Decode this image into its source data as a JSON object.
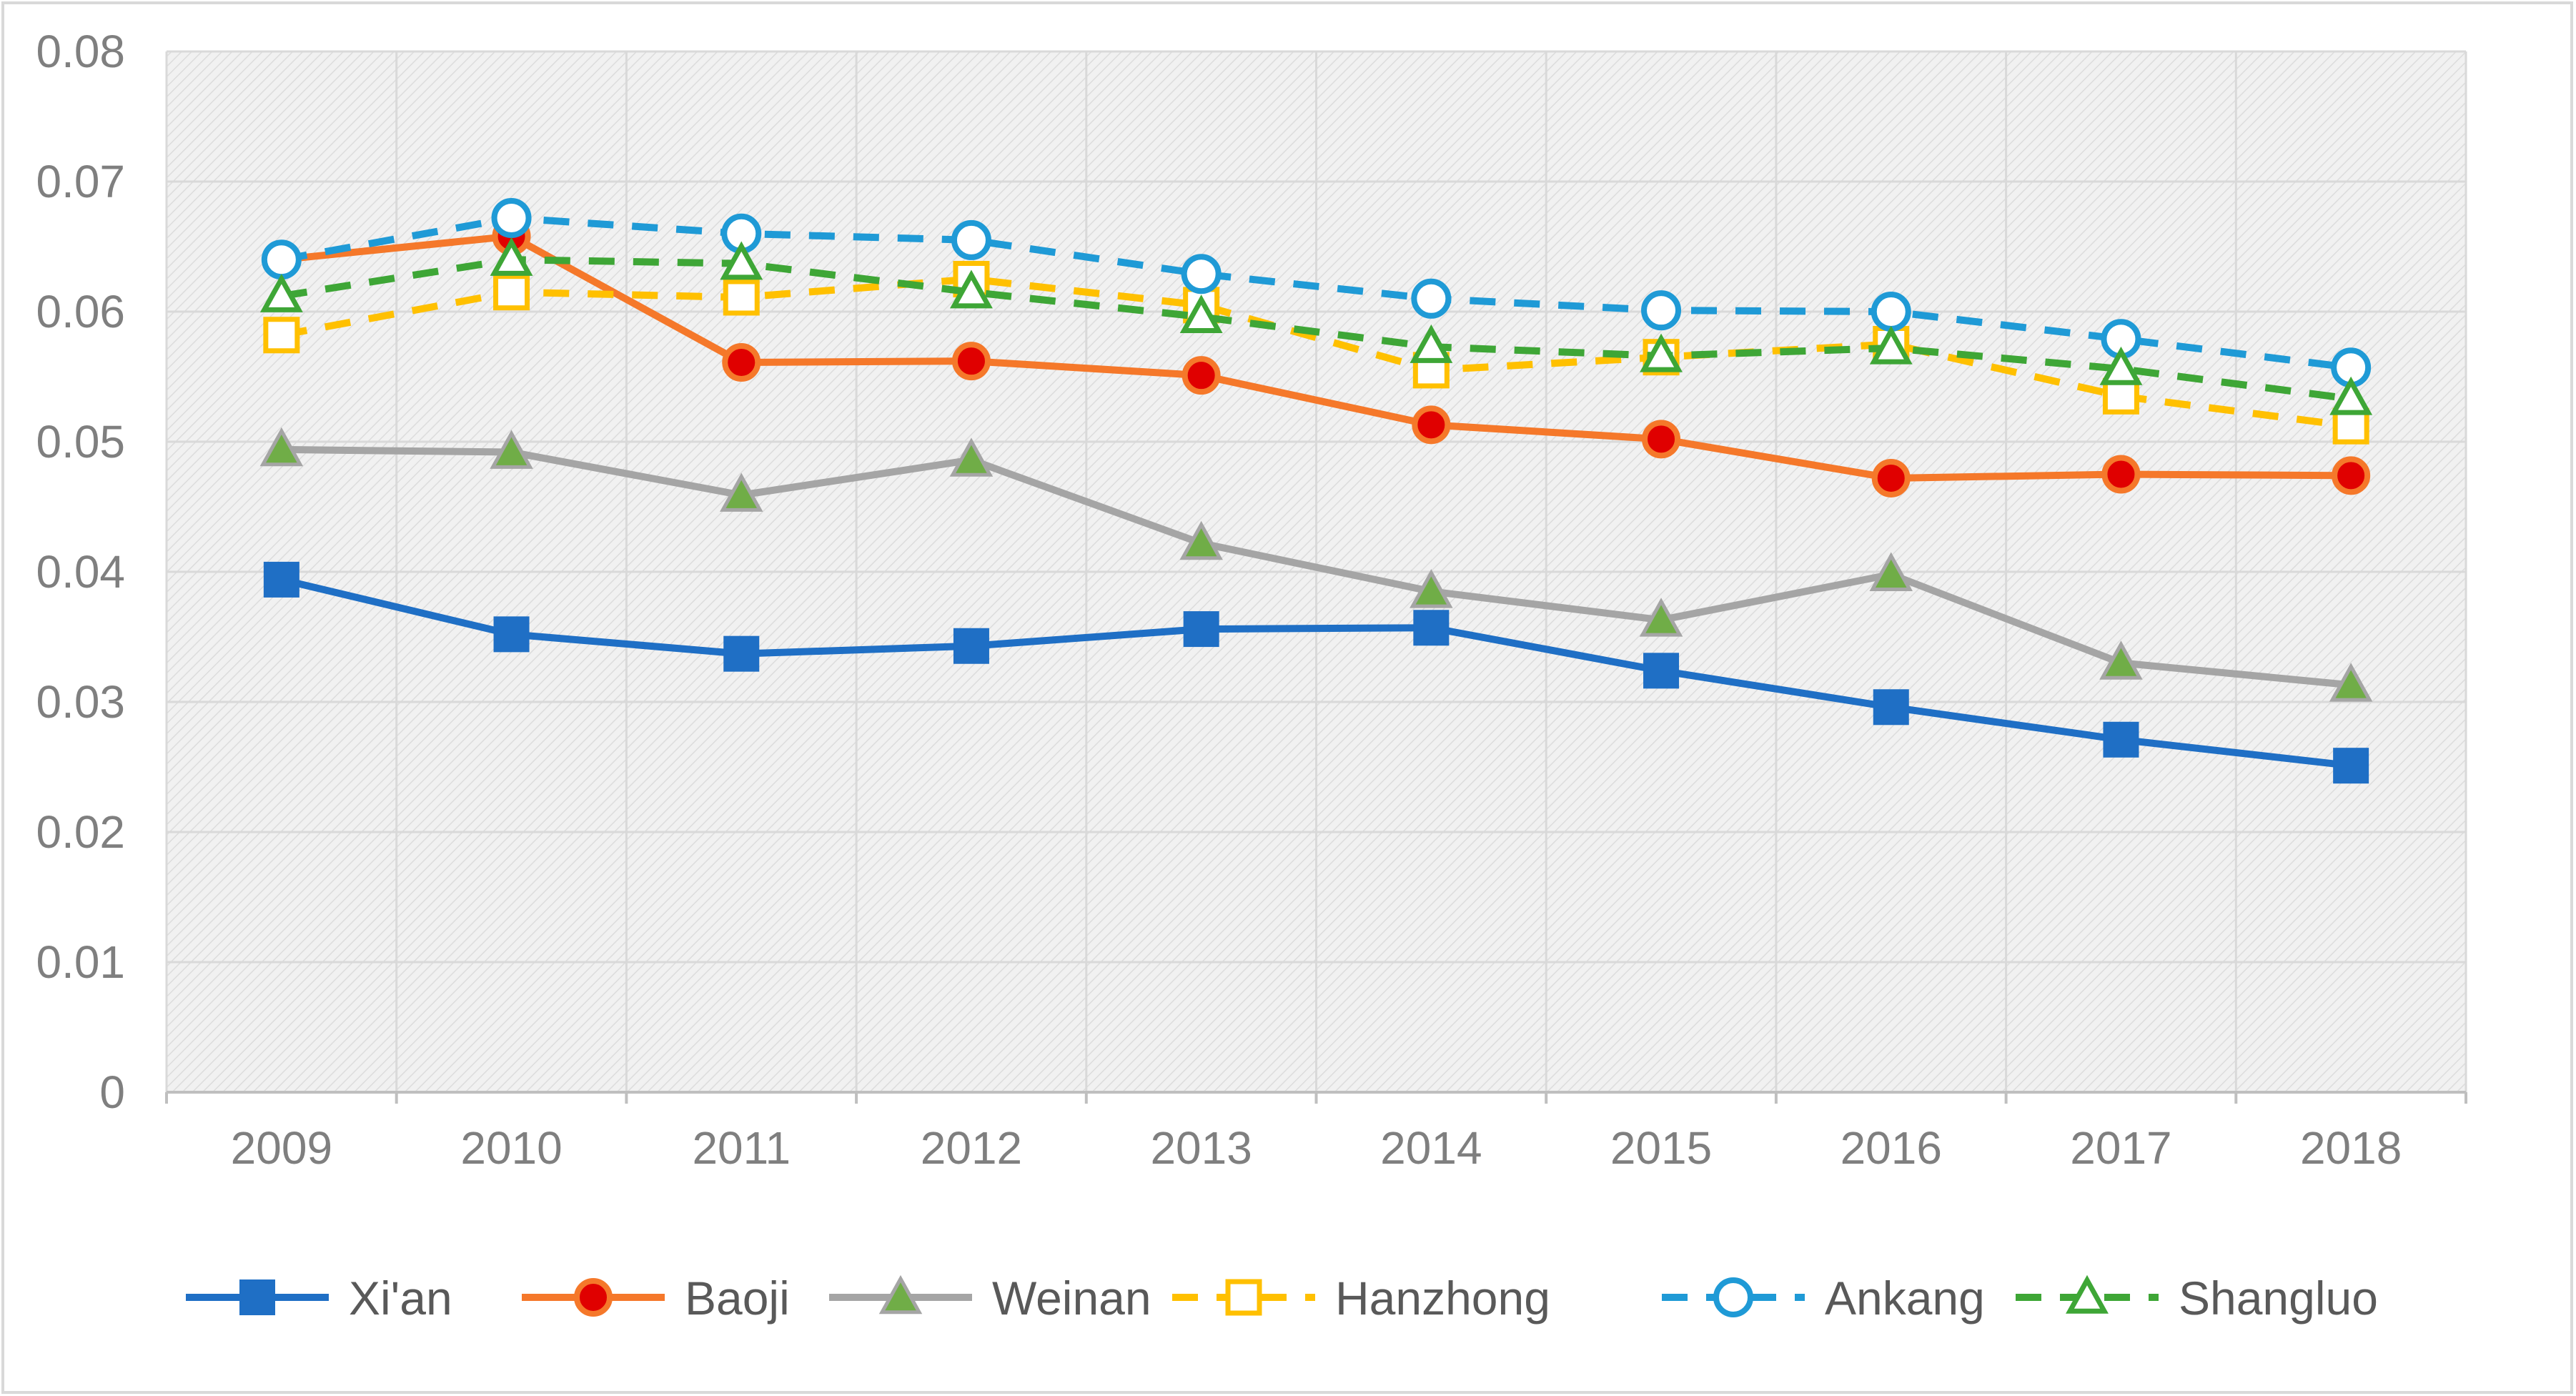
{
  "chart_data": {
    "type": "line",
    "title": "",
    "xlabel": "",
    "ylabel": "",
    "categories": [
      "2009",
      "2010",
      "2011",
      "2012",
      "2013",
      "2014",
      "2015",
      "2016",
      "2017",
      "2018"
    ],
    "ylim": [
      0,
      0.08
    ],
    "yticks": [
      "0",
      "0.01",
      "0.02",
      "0.03",
      "0.04",
      "0.05",
      "0.06",
      "0.07",
      "0.08"
    ],
    "yticks_values": [
      0,
      0.01,
      0.02,
      0.03,
      0.04,
      0.05,
      0.06,
      0.07,
      0.08
    ],
    "grid": true,
    "legend_position": "bottom",
    "series": [
      {
        "name": "Xi'an",
        "color": "#1f6fc5",
        "dash": "solid",
        "marker": "square-filled",
        "values": [
          0.0394,
          0.0352,
          0.0337,
          0.0343,
          0.0356,
          0.0357,
          0.0324,
          0.0296,
          0.0271,
          0.0251
        ]
      },
      {
        "name": "Baoji",
        "color": "#f5782a",
        "dash": "solid",
        "marker": "circle-red",
        "values": [
          0.064,
          0.0658,
          0.0561,
          0.0562,
          0.0551,
          0.0513,
          0.0502,
          0.0472,
          0.0475,
          0.0474
        ]
      },
      {
        "name": "Weinan",
        "color": "#a5a5a5",
        "dash": "solid",
        "marker": "triangle-green",
        "values": [
          0.0494,
          0.0492,
          0.0459,
          0.0486,
          0.0422,
          0.0385,
          0.0363,
          0.0398,
          0.033,
          0.0313
        ]
      },
      {
        "name": "Hanzhong",
        "color": "#ffc000",
        "dash": "dashed",
        "marker": "square-open",
        "values": [
          0.0582,
          0.0615,
          0.0611,
          0.0625,
          0.0605,
          0.0555,
          0.0565,
          0.0575,
          0.0535,
          0.0512
        ]
      },
      {
        "name": "Ankang",
        "color": "#1f9ad6",
        "dash": "dashed",
        "marker": "circle-open",
        "values": [
          0.064,
          0.0672,
          0.066,
          0.0655,
          0.0629,
          0.061,
          0.0601,
          0.06,
          0.0579,
          0.0557
        ]
      },
      {
        "name": "Shangluo",
        "color": "#3ea636",
        "dash": "dashed",
        "marker": "triangle-open",
        "values": [
          0.0612,
          0.064,
          0.0637,
          0.0615,
          0.0596,
          0.0573,
          0.0566,
          0.0572,
          0.0556,
          0.0533
        ]
      }
    ]
  }
}
